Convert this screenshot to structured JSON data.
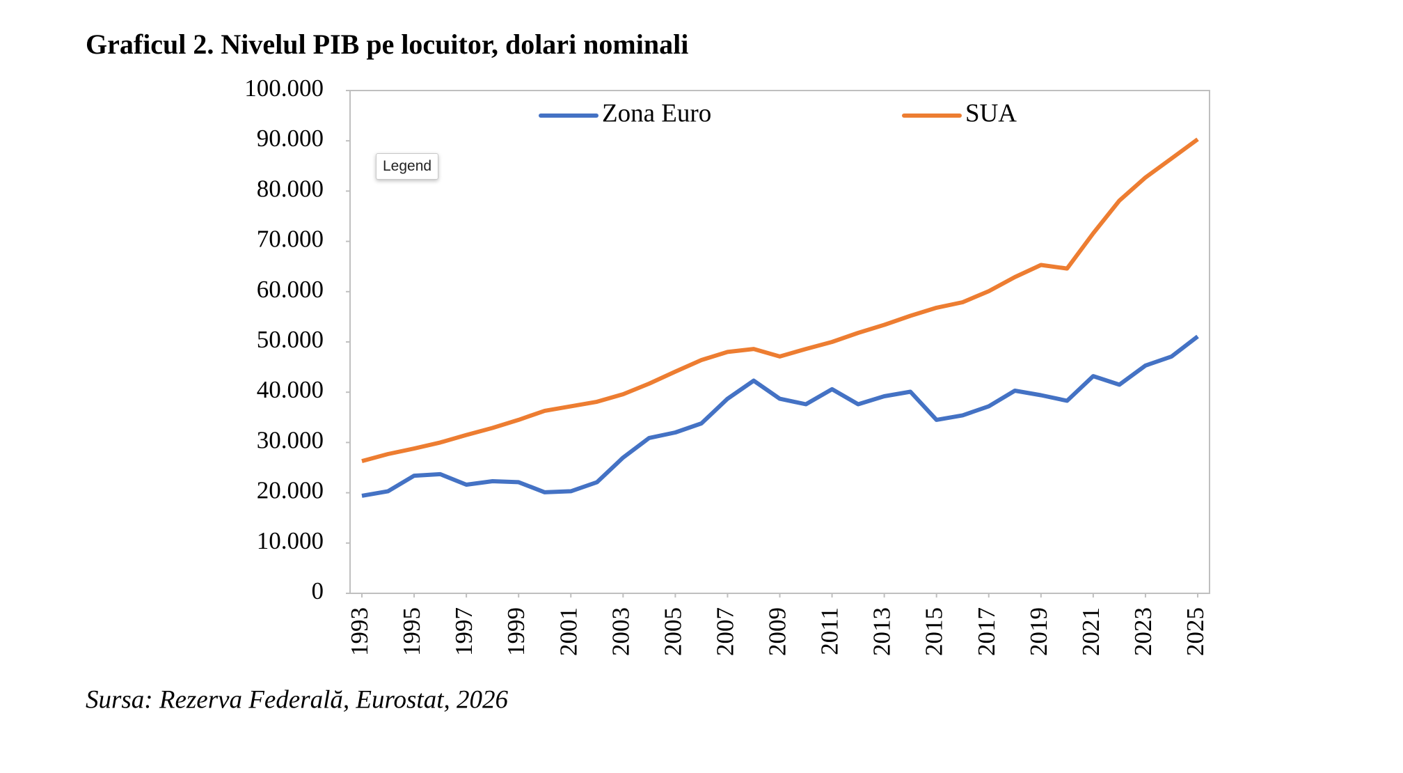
{
  "chart_data": {
    "type": "line",
    "title": "Graficul 2. Nivelul PIB pe locuitor, dolari nominali",
    "source": "Sursa: Rezerva Federală, Eurostat, 2026",
    "x": [
      1993,
      1994,
      1995,
      1996,
      1997,
      1998,
      1999,
      2000,
      2001,
      2002,
      2003,
      2004,
      2005,
      2006,
      2007,
      2008,
      2009,
      2010,
      2011,
      2012,
      2013,
      2014,
      2015,
      2016,
      2017,
      2018,
      2019,
      2020,
      2021,
      2022,
      2023,
      2024,
      2025
    ],
    "xlim": [
      1993,
      2025
    ],
    "xticks": [
      1993,
      1995,
      1997,
      1999,
      2001,
      2003,
      2005,
      2007,
      2009,
      2011,
      2013,
      2015,
      2017,
      2019,
      2021,
      2023,
      2025
    ],
    "ylim": [
      0,
      100000
    ],
    "yticks": [
      0,
      {
        "value": 10000,
        "label": "10.000"
      },
      {
        "value": 20000,
        "label": "20.000"
      },
      {
        "value": 30000,
        "label": "30.000"
      },
      {
        "value": 40000,
        "label": "40.000"
      },
      {
        "value": 50000,
        "label": "50.000"
      },
      {
        "value": 60000,
        "label": "60.000"
      },
      {
        "value": 70000,
        "label": "70.000"
      },
      {
        "value": 80000,
        "label": "80.000"
      },
      {
        "value": 90000,
        "label": "90.000"
      },
      {
        "value": 100000,
        "label": "100.000"
      }
    ],
    "grid": false,
    "legend": "top",
    "series": [
      {
        "name": "Zona Euro",
        "color": "#4472c4",
        "values": [
          19400,
          20300,
          23400,
          23700,
          21600,
          22300,
          22100,
          20100,
          20300,
          22100,
          27000,
          30900,
          32000,
          33800,
          38700,
          42300,
          38700,
          37600,
          40600,
          37600,
          39200,
          40100,
          34500,
          35400,
          37200,
          40300,
          39400,
          38300,
          43200,
          41500,
          45300,
          47100,
          51100
        ]
      },
      {
        "name": "SUA",
        "color": "#ed7d31",
        "values": [
          26300,
          27700,
          28800,
          30000,
          31500,
          32900,
          34500,
          36300,
          37200,
          38100,
          39600,
          41700,
          44100,
          46400,
          48000,
          48600,
          47100,
          48600,
          50000,
          51800,
          53400,
          55200,
          56800,
          57900,
          60100,
          62900,
          65300,
          64600,
          71600,
          78100,
          82700,
          86500,
          90300
        ]
      }
    ]
  },
  "tooltip": "Legend"
}
